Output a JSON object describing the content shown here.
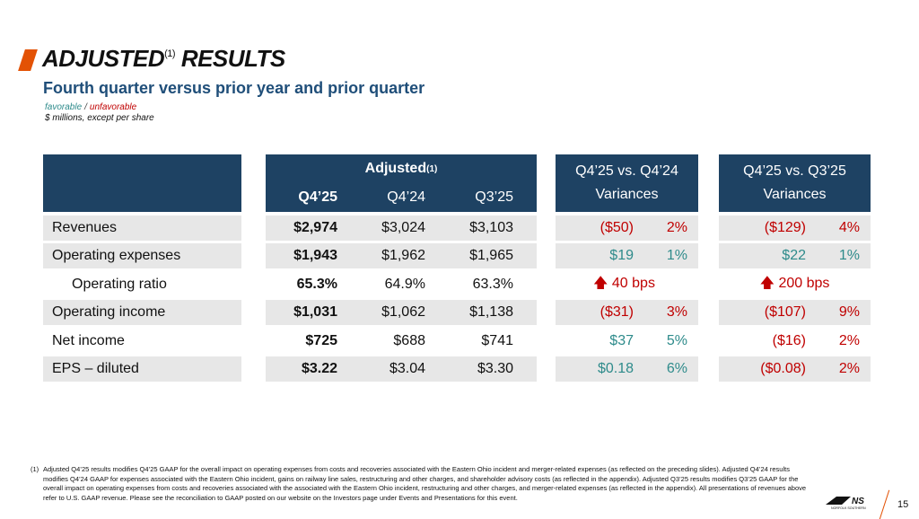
{
  "header": {
    "title": "ADJUSTED",
    "title_sup": "(1)",
    "title_rest": " RESULTS",
    "subtitle": "Fourth quarter versus prior year and prior quarter",
    "legend_favorable": "favorable",
    "legend_sep": "/",
    "legend_unfavorable": "unfavorable",
    "units": "$ millions, except per share"
  },
  "table": {
    "adjusted_header": "Adjusted",
    "adjusted_sup": "(1)",
    "col_q425": "Q4’25",
    "col_q424": "Q4’24",
    "col_q325": "Q3’25",
    "var1_title": "Q4’25 vs. Q4’24",
    "var2_title": "Q4’25 vs. Q3’25",
    "var_subtitle": "Variances",
    "rows": [
      {
        "label": "Revenues",
        "q425": "$2,974",
        "q424": "$3,024",
        "q325": "$3,103",
        "v1_amt": "($50)",
        "v1_pct": "2%",
        "v2_amt": "($129)",
        "v2_pct": "4%"
      },
      {
        "label": "Operating expenses",
        "q425": "$1,943",
        "q424": "$1,962",
        "q325": "$1,965",
        "v1_amt": "$19",
        "v1_pct": "1%",
        "v2_amt": "$22",
        "v2_pct": "1%"
      },
      {
        "label": "Operating ratio",
        "q425": "65.3%",
        "q424": "64.9%",
        "q325": "63.3%",
        "v1_bps": "40 bps",
        "v2_bps": "200 bps"
      },
      {
        "label": "Operating income",
        "q425": "$1,031",
        "q424": "$1,062",
        "q325": "$1,138",
        "v1_amt": "($31)",
        "v1_pct": "3%",
        "v2_amt": "($107)",
        "v2_pct": "9%"
      },
      {
        "label": "Net income",
        "q425": "$725",
        "q424": "$688",
        "q325": "$741",
        "v1_amt": "$37",
        "v1_pct": "5%",
        "v2_amt": "($16)",
        "v2_pct": "2%"
      },
      {
        "label": "EPS – diluted",
        "q425": "$3.22",
        "q424": "$3.04",
        "q325": "$3.30",
        "v1_amt": "$0.18",
        "v1_pct": "6%",
        "v2_amt": "($0.08)",
        "v2_pct": "2%"
      }
    ]
  },
  "colors": {
    "header_bg": "#1e4263",
    "favorable": "#2e8b8b",
    "unfavorable": "#c00000",
    "accent": "#e35205",
    "subtitle": "#1f4e79"
  },
  "footnote": {
    "num": "(1)",
    "text": "Adjusted Q4’25 results modifies Q4’25 GAAP for the overall impact on operating expenses from costs and recoveries associated with the Eastern Ohio incident and merger-related expenses (as reflected on the preceding slides). Adjusted Q4’24 results modifies Q4’24 GAAP for expenses associated with the Eastern Ohio incident, gains on railway line sales, restructuring and other charges, and shareholder advisory costs (as reflected in the appendix). Adjusted Q3’25 results modifies Q3’25 GAAP for the overall impact on operating expenses from costs and recoveries associated with the associated with the Eastern Ohio incident, restructuring and other charges, and merger-related expenses (as reflected in the appendix). All presentations of revenues above refer to U.S. GAAP revenue. Please see the reconciliation to GAAP posted on our website on the Investors page under Events and Presentations for this event."
  },
  "footer": {
    "logo_text": "NORFOLK SOUTHERN",
    "page_number": "15"
  }
}
